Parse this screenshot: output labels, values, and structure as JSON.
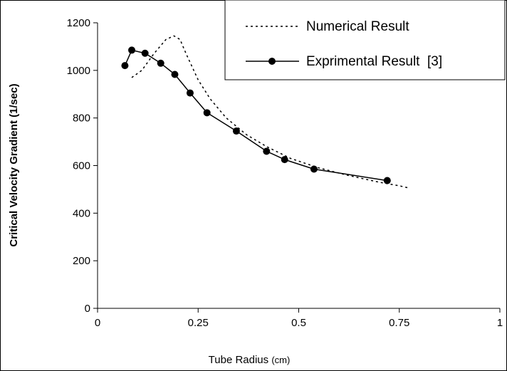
{
  "chart_data": {
    "type": "line",
    "title": "",
    "xlabel": "Tube Radius",
    "xlabel_unit": "(cm)",
    "ylabel": "Critical Velocity Gradient (1/sec)",
    "xlim": [
      0,
      1
    ],
    "ylim": [
      0,
      1200
    ],
    "x_ticks": [
      "0",
      "0.25",
      "0.5",
      "0.75",
      "1"
    ],
    "y_ticks": [
      "0",
      "200",
      "400",
      "600",
      "800",
      "1000",
      "1200"
    ],
    "grid": false,
    "legend_position": "top-right",
    "series": [
      {
        "name": "Numerical Result",
        "style": "dotted",
        "markers": false,
        "color": "#000000",
        "x": [
          0.085,
          0.11,
          0.14,
          0.17,
          0.19,
          0.205,
          0.22,
          0.25,
          0.28,
          0.32,
          0.37,
          0.42,
          0.48,
          0.55,
          0.62,
          0.7,
          0.75,
          0.775
        ],
        "y": [
          970,
          1000,
          1070,
          1130,
          1145,
          1130,
          1070,
          960,
          880,
          800,
          730,
          680,
          630,
          590,
          560,
          530,
          515,
          505
        ]
      },
      {
        "name": "Exprimental Result  [3]",
        "style": "solid",
        "markers": true,
        "color": "#000000",
        "x": [
          0.068,
          0.085,
          0.118,
          0.157,
          0.192,
          0.23,
          0.272,
          0.345,
          0.42,
          0.465,
          0.538,
          0.72
        ],
        "y": [
          1020,
          1085,
          1072,
          1030,
          983,
          905,
          822,
          745,
          660,
          625,
          585,
          537
        ]
      }
    ]
  }
}
